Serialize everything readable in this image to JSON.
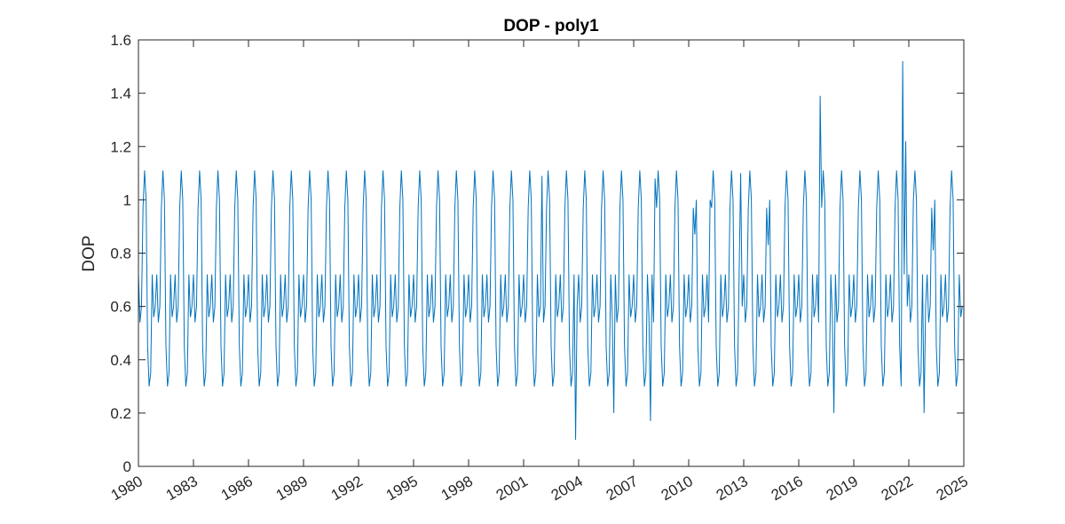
{
  "chart_data": {
    "type": "line",
    "title": "DOP - poly1",
    "xlabel": "",
    "ylabel": "DOP",
    "xlim": [
      1980,
      2025
    ],
    "ylim": [
      0,
      1.6
    ],
    "x_ticks": [
      "1980",
      "1983",
      "1986",
      "1989",
      "1992",
      "1995",
      "1998",
      "2001",
      "2004",
      "2007",
      "2010",
      "2013",
      "2016",
      "2019",
      "2022",
      "2025"
    ],
    "y_ticks": [
      "0",
      "0.2",
      "0.4",
      "0.6",
      "0.8",
      "1",
      "1.2",
      "1.4",
      "1.6"
    ],
    "grid": false,
    "series": [
      {
        "color": "#0072BD",
        "sampling": "monthly, January 1980 – December 2024",
        "template_year": [
          0.72,
          0.54,
          0.6,
          0.97,
          1.11,
          1.0,
          0.45,
          0.3,
          0.35,
          0.72,
          0.56,
          0.6
        ],
        "overrides": [
          {
            "x": 2003.83,
            "y": 0.1
          },
          {
            "x": 2005.92,
            "y": 0.2
          },
          {
            "x": 2007.92,
            "y": 0.17
          },
          {
            "x": 2002.0,
            "y": 1.09
          },
          {
            "x": 2008.17,
            "y": 1.08
          },
          {
            "x": 2010.33,
            "y": 0.87
          },
          {
            "x": 2011.17,
            "y": 1.0
          },
          {
            "x": 2012.83,
            "y": 1.1
          },
          {
            "x": 2014.33,
            "y": 0.83
          },
          {
            "x": 2017.17,
            "y": 1.39
          },
          {
            "x": 2017.92,
            "y": 0.2
          },
          {
            "x": 2021.67,
            "y": 1.52
          },
          {
            "x": 2021.83,
            "y": 1.22
          },
          {
            "x": 2022.25,
            "y": 1.0
          },
          {
            "x": 2022.83,
            "y": 0.2
          },
          {
            "x": 2023.33,
            "y": 0.81
          }
        ]
      }
    ]
  }
}
